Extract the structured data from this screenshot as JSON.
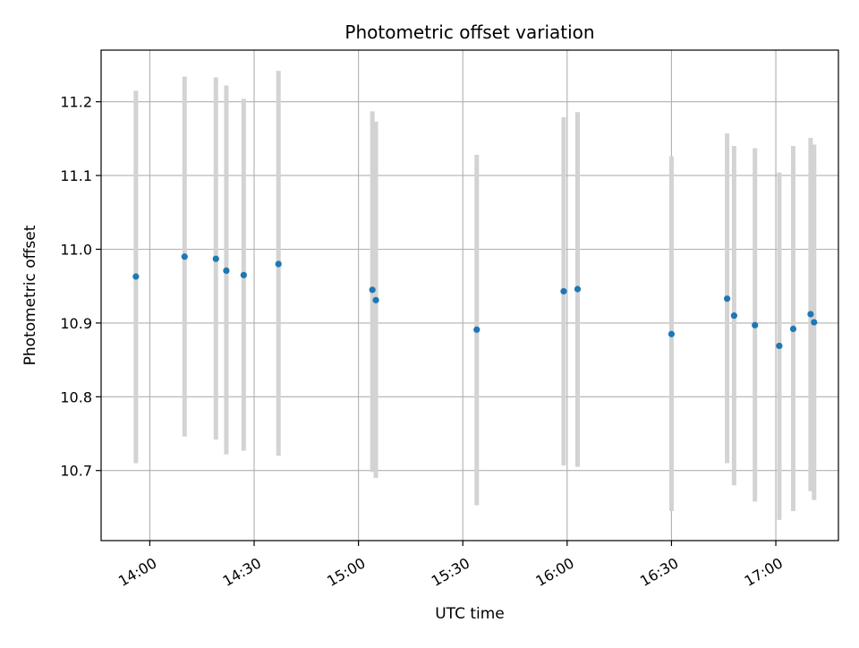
{
  "chart_data": {
    "type": "scatter",
    "title": "Photometric offset variation",
    "xlabel": "UTC time",
    "ylabel": "Photometric offset",
    "x_ticks": [
      "14:00",
      "14:30",
      "15:00",
      "15:30",
      "16:00",
      "16:30",
      "17:00"
    ],
    "y_ticks": [
      "10.7",
      "10.8",
      "10.9",
      "11.0",
      "11.1",
      "11.2"
    ],
    "xlim": [
      "13:46",
      "17:18"
    ],
    "ylim": [
      10.605,
      11.27
    ],
    "grid": true,
    "colors": {
      "marker": "#1f77b4",
      "errorbar": "#d3d3d3"
    },
    "points": [
      {
        "time": "13:56",
        "y": 10.963,
        "ylo": 10.71,
        "yhi": 11.215
      },
      {
        "time": "14:10",
        "y": 10.99,
        "ylo": 10.746,
        "yhi": 11.234
      },
      {
        "time": "14:19",
        "y": 10.987,
        "ylo": 10.742,
        "yhi": 11.233
      },
      {
        "time": "14:22",
        "y": 10.971,
        "ylo": 10.722,
        "yhi": 11.222
      },
      {
        "time": "14:27",
        "y": 10.965,
        "ylo": 10.727,
        "yhi": 11.204
      },
      {
        "time": "14:37",
        "y": 10.98,
        "ylo": 10.72,
        "yhi": 11.242
      },
      {
        "time": "15:04",
        "y": 10.945,
        "ylo": 10.698,
        "yhi": 11.187
      },
      {
        "time": "15:05",
        "y": 10.931,
        "ylo": 10.69,
        "yhi": 11.173
      },
      {
        "time": "15:34",
        "y": 10.891,
        "ylo": 10.653,
        "yhi": 11.128
      },
      {
        "time": "15:59",
        "y": 10.943,
        "ylo": 10.707,
        "yhi": 11.179
      },
      {
        "time": "16:03",
        "y": 10.946,
        "ylo": 10.705,
        "yhi": 11.186
      },
      {
        "time": "16:30",
        "y": 10.885,
        "ylo": 10.645,
        "yhi": 11.126
      },
      {
        "time": "16:46",
        "y": 10.933,
        "ylo": 10.71,
        "yhi": 11.157
      },
      {
        "time": "16:48",
        "y": 10.91,
        "ylo": 10.68,
        "yhi": 11.14
      },
      {
        "time": "16:54",
        "y": 10.897,
        "ylo": 10.658,
        "yhi": 11.137
      },
      {
        "time": "17:01",
        "y": 10.869,
        "ylo": 10.633,
        "yhi": 11.104
      },
      {
        "time": "17:05",
        "y": 10.892,
        "ylo": 10.645,
        "yhi": 11.14
      },
      {
        "time": "17:10",
        "y": 10.912,
        "ylo": 10.672,
        "yhi": 11.151
      },
      {
        "time": "17:11",
        "y": 10.901,
        "ylo": 10.66,
        "yhi": 11.142
      }
    ]
  }
}
